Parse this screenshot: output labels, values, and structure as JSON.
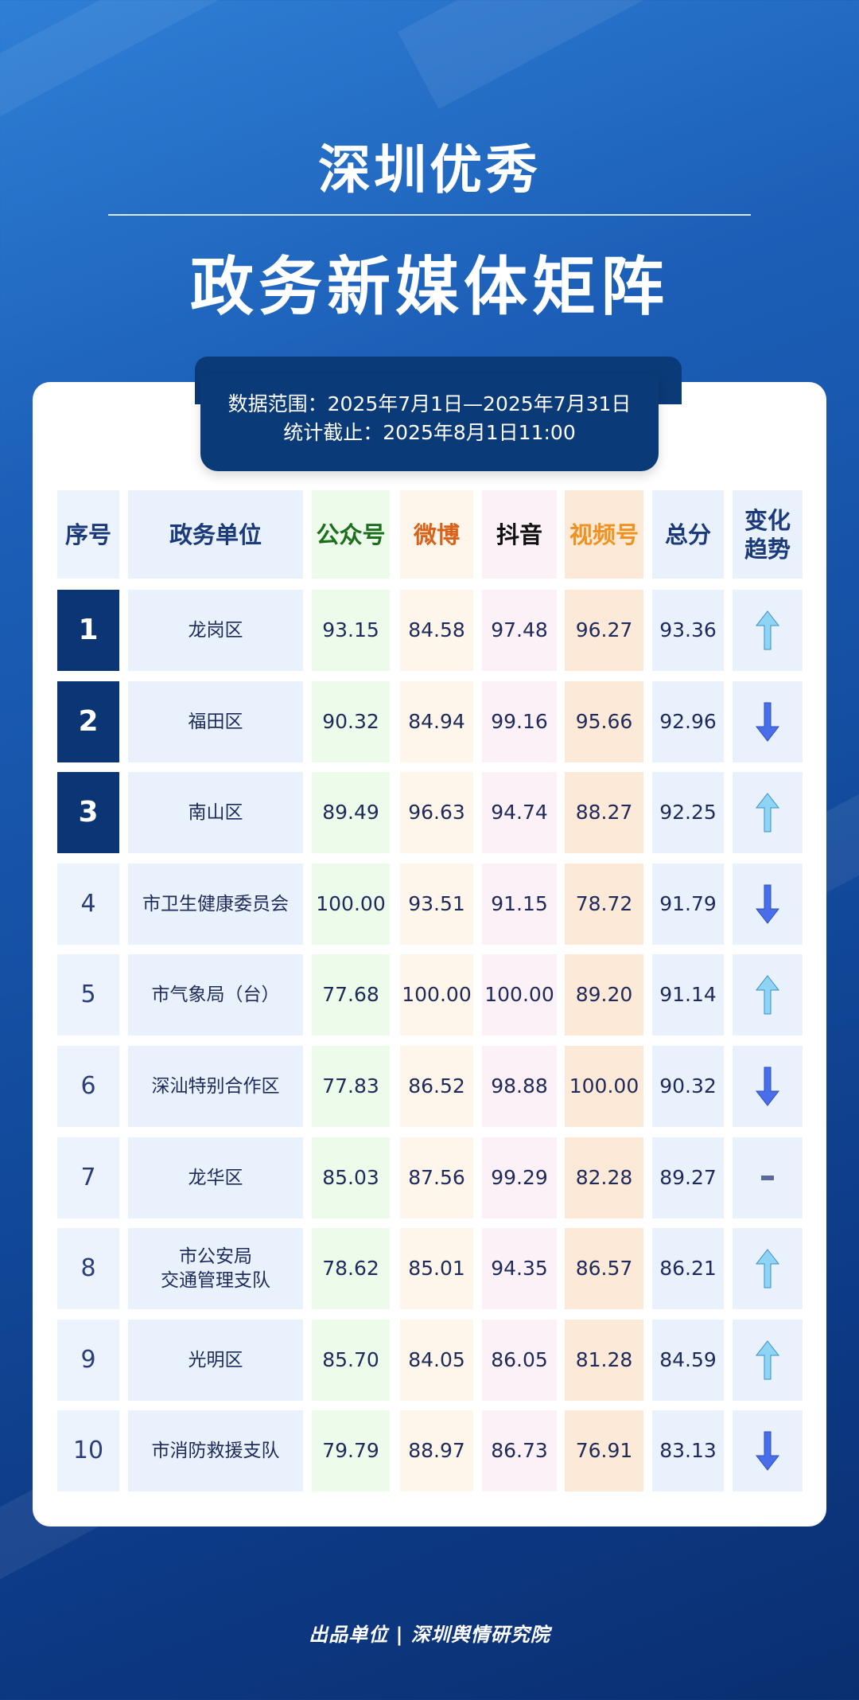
{
  "title_line1": "深圳优秀",
  "title_line2": "政务新媒体矩阵",
  "info": {
    "range": "数据范围：2025年7月1日—2025年7月31日",
    "cutoff": "统计截止：2025年8月1日11:00"
  },
  "table": {
    "headers": [
      {
        "label": "序号",
        "color": "#1b3a7a"
      },
      {
        "label": "政务单位",
        "color": "#1b3a7a"
      },
      {
        "label": "公众号",
        "color": "#1d6e1d"
      },
      {
        "label": "微博",
        "color": "#d9621b"
      },
      {
        "label": "抖音",
        "color": "#111111"
      },
      {
        "label": "视频号",
        "color": "#f0921f"
      },
      {
        "label": "总分",
        "color": "#1b3a7a"
      },
      {
        "label": "变化趋势",
        "color": "#1b3a7a"
      }
    ],
    "column_colors": [
      "#edf3fd",
      "#e9f1fd",
      "#edfbea",
      "#fff6eb",
      "#fdf1f8",
      "#fde9d8",
      "#e9f1fd",
      "#e9f1fd"
    ],
    "rows": [
      {
        "rank": "1",
        "unit": "龙岗区",
        "gzh": "93.15",
        "weibo": "84.58",
        "douyin": "97.48",
        "sph": "96.27",
        "total": "93.36",
        "trend": "up"
      },
      {
        "rank": "2",
        "unit": "福田区",
        "gzh": "90.32",
        "weibo": "84.94",
        "douyin": "99.16",
        "sph": "95.66",
        "total": "92.96",
        "trend": "down"
      },
      {
        "rank": "3",
        "unit": "南山区",
        "gzh": "89.49",
        "weibo": "96.63",
        "douyin": "94.74",
        "sph": "88.27",
        "total": "92.25",
        "trend": "up"
      },
      {
        "rank": "4",
        "unit": "市卫生健康委员会",
        "gzh": "100.00",
        "weibo": "93.51",
        "douyin": "91.15",
        "sph": "78.72",
        "total": "91.79",
        "trend": "down"
      },
      {
        "rank": "5",
        "unit": "市气象局（台）",
        "gzh": "77.68",
        "weibo": "100.00",
        "douyin": "100.00",
        "sph": "89.20",
        "total": "91.14",
        "trend": "up"
      },
      {
        "rank": "6",
        "unit": "深汕特别合作区",
        "gzh": "77.83",
        "weibo": "86.52",
        "douyin": "98.88",
        "sph": "100.00",
        "total": "90.32",
        "trend": "down"
      },
      {
        "rank": "7",
        "unit": "龙华区",
        "gzh": "85.03",
        "weibo": "87.56",
        "douyin": "99.29",
        "sph": "82.28",
        "total": "89.27",
        "trend": "flat"
      },
      {
        "rank": "8",
        "unit": "市公安局\n交通管理支队",
        "gzh": "78.62",
        "weibo": "85.01",
        "douyin": "94.35",
        "sph": "86.57",
        "total": "86.21",
        "trend": "up"
      },
      {
        "rank": "9",
        "unit": "光明区",
        "gzh": "85.70",
        "weibo": "84.05",
        "douyin": "86.05",
        "sph": "81.28",
        "total": "84.59",
        "trend": "up"
      },
      {
        "rank": "10",
        "unit": "市消防救援支队",
        "gzh": "79.79",
        "weibo": "88.97",
        "douyin": "86.73",
        "sph": "76.91",
        "total": "83.13",
        "trend": "down"
      }
    ]
  },
  "footer": "出品单位 | 深圳舆情研究院"
}
